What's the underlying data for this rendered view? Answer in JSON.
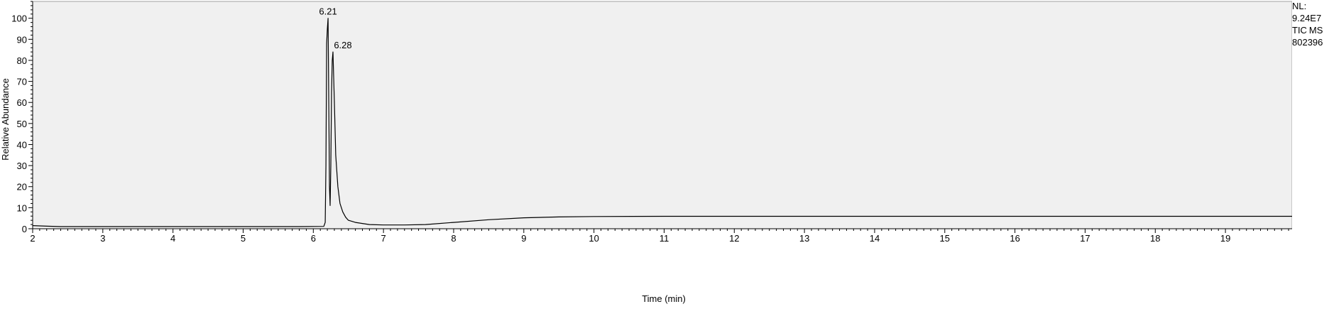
{
  "chart_data": {
    "type": "line",
    "xlabel": "Time (min)",
    "ylabel": "Relative Abundance",
    "xlim": [
      2,
      19.95
    ],
    "ylim": [
      0,
      108
    ],
    "x_ticks": [
      2,
      3,
      4,
      5,
      6,
      7,
      8,
      9,
      10,
      11,
      12,
      13,
      14,
      15,
      16,
      17,
      18,
      19
    ],
    "y_ticks": [
      0,
      10,
      20,
      30,
      40,
      50,
      60,
      70,
      80,
      90,
      100
    ],
    "colors": {
      "plot_background": "#f0f0f0",
      "trace": "#000000"
    },
    "series": [
      {
        "x": [
          2.0,
          2.2,
          2.4,
          3.0,
          4.0,
          5.0,
          5.8,
          6.15,
          6.17,
          6.18,
          6.19,
          6.2,
          6.21,
          6.22,
          6.23,
          6.24,
          6.25,
          6.26,
          6.27,
          6.28,
          6.3,
          6.32,
          6.35,
          6.38,
          6.42,
          6.46,
          6.5,
          6.6,
          6.7,
          6.8,
          7.0,
          7.3,
          7.6,
          8.0,
          8.5,
          9.0,
          9.5,
          10.0,
          11.0,
          13.0,
          15.0,
          17.0,
          19.0,
          19.95
        ],
        "y": [
          1.5,
          1.2,
          1.0,
          1.0,
          1.0,
          1.0,
          1.0,
          1.1,
          3.0,
          30.0,
          88.0,
          95.0,
          100.0,
          60.0,
          20.0,
          11.0,
          30.0,
          65.0,
          80.0,
          84.0,
          60.0,
          35.0,
          20.0,
          12.0,
          8.0,
          5.5,
          4.0,
          3.0,
          2.5,
          2.0,
          1.8,
          1.8,
          2.0,
          3.0,
          4.3,
          5.2,
          5.6,
          5.8,
          5.9,
          5.9,
          5.9,
          5.9,
          5.9,
          5.9
        ]
      }
    ],
    "peak_labels": [
      {
        "text": "6.21",
        "x": 6.21,
        "y": 100
      },
      {
        "text": "6.28",
        "x": 6.28,
        "y": 84
      }
    ]
  },
  "info": {
    "nl_label": "NL:",
    "nl_value": "9.24E7",
    "tic": "TIC",
    "ms": "MS",
    "sample": "802396"
  }
}
